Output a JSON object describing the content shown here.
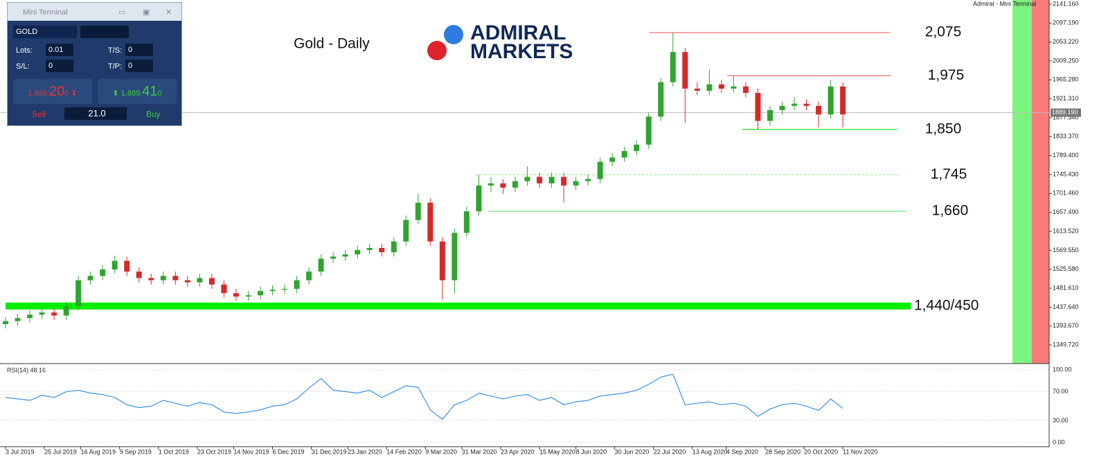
{
  "chart_data": {
    "type": "candlestick",
    "title": "Gold - Daily",
    "x": [
      0,
      5,
      10,
      15,
      20,
      25,
      30,
      35,
      40,
      45,
      50,
      55,
      60,
      65,
      70,
      75,
      80,
      85,
      90,
      95,
      100,
      105,
      110,
      115,
      120,
      125,
      130,
      135,
      140,
      145,
      150,
      155,
      160,
      165,
      170,
      175,
      180,
      185,
      190,
      195,
      200,
      205,
      210,
      215,
      220,
      225,
      230,
      235,
      240,
      245,
      250,
      255,
      260,
      265,
      270,
      275,
      280,
      285,
      290,
      295,
      300,
      305,
      310,
      315,
      320,
      325,
      330,
      335,
      340,
      345
    ],
    "open": [
      1398,
      1405,
      1412,
      1420,
      1425,
      1418,
      1440,
      1500,
      1510,
      1525,
      1545,
      1520,
      1505,
      1500,
      1510,
      1500,
      1495,
      1505,
      1490,
      1470,
      1462,
      1465,
      1475,
      1478,
      1480,
      1500,
      1520,
      1550,
      1555,
      1560,
      1570,
      1575,
      1565,
      1590,
      1640,
      1680,
      1590,
      1500,
      1610,
      1660,
      1720,
      1725,
      1715,
      1730,
      1740,
      1725,
      1740,
      1720,
      1730,
      1735,
      1775,
      1785,
      1800,
      1815,
      1880,
      1960,
      2030,
      1945,
      1940,
      1955,
      1945,
      1950,
      1935,
      1870,
      1895,
      1905,
      1910,
      1905,
      1885,
      1950
    ],
    "high": [
      1415,
      1422,
      1430,
      1435,
      1435,
      1450,
      1510,
      1520,
      1535,
      1557,
      1555,
      1530,
      1515,
      1520,
      1520,
      1510,
      1515,
      1515,
      1500,
      1480,
      1475,
      1485,
      1488,
      1490,
      1510,
      1530,
      1560,
      1565,
      1570,
      1580,
      1585,
      1585,
      1600,
      1650,
      1700,
      1690,
      1600,
      1620,
      1670,
      1745,
      1740,
      1735,
      1740,
      1765,
      1750,
      1750,
      1750,
      1740,
      1745,
      1785,
      1795,
      1810,
      1825,
      1890,
      1970,
      2075,
      2040,
      1960,
      1990,
      1965,
      1975,
      1960,
      1945,
      1905,
      1915,
      1925,
      1920,
      1915,
      1965,
      1960
    ],
    "low": [
      1388,
      1395,
      1402,
      1410,
      1408,
      1408,
      1430,
      1490,
      1500,
      1515,
      1510,
      1495,
      1490,
      1490,
      1490,
      1485,
      1485,
      1480,
      1460,
      1452,
      1452,
      1455,
      1465,
      1468,
      1470,
      1490,
      1510,
      1540,
      1545,
      1550,
      1560,
      1555,
      1555,
      1580,
      1630,
      1580,
      1455,
      1470,
      1600,
      1650,
      1705,
      1700,
      1705,
      1720,
      1715,
      1715,
      1680,
      1710,
      1720,
      1725,
      1765,
      1775,
      1790,
      1805,
      1870,
      1950,
      1865,
      1930,
      1930,
      1935,
      1935,
      1925,
      1850,
      1860,
      1885,
      1895,
      1895,
      1855,
      1875,
      1855
    ],
    "close": [
      1405,
      1412,
      1420,
      1425,
      1418,
      1440,
      1500,
      1510,
      1525,
      1545,
      1520,
      1505,
      1500,
      1510,
      1500,
      1495,
      1505,
      1490,
      1470,
      1462,
      1465,
      1475,
      1478,
      1480,
      1500,
      1520,
      1550,
      1555,
      1560,
      1570,
      1575,
      1565,
      1590,
      1640,
      1680,
      1590,
      1500,
      1610,
      1660,
      1720,
      1725,
      1715,
      1730,
      1740,
      1725,
      1740,
      1720,
      1730,
      1735,
      1775,
      1785,
      1800,
      1815,
      1880,
      1960,
      2030,
      1945,
      1940,
      1955,
      1945,
      1950,
      1935,
      1870,
      1895,
      1905,
      1910,
      1905,
      1885,
      1950,
      1885
    ],
    "up_color": "#2fa52f",
    "down_color": "#d42a2a",
    "xlim": [
      0,
      430
    ],
    "xticks": [
      {
        "value": 0,
        "label": "3 Jul 2019"
      },
      {
        "value": 16,
        "label": "25 Jul 2019"
      },
      {
        "value": 31,
        "label": "16 Aug 2019"
      },
      {
        "value": 47,
        "label": "9 Sep 2019"
      },
      {
        "value": 63,
        "label": "1 Oct 2019"
      },
      {
        "value": 79,
        "label": "23 Oct 2019"
      },
      {
        "value": 94,
        "label": "14 Nov 2019"
      },
      {
        "value": 110,
        "label": "6 Dec 2019"
      },
      {
        "value": 126,
        "label": "31 Dec 2019"
      },
      {
        "value": 141,
        "label": "23 Jan 2020"
      },
      {
        "value": 157,
        "label": "14 Feb 2020"
      },
      {
        "value": 173,
        "label": "9 Mar 2020"
      },
      {
        "value": 188,
        "label": "31 Mar 2020"
      },
      {
        "value": 204,
        "label": "23 Apr 2020"
      },
      {
        "value": 220,
        "label": "15 May 2020"
      },
      {
        "value": 235,
        "label": "8 Jun 2020"
      },
      {
        "value": 251,
        "label": "30 Jun 2020"
      },
      {
        "value": 267,
        "label": "22 Jul 2020"
      },
      {
        "value": 283,
        "label": "13 Aug 2020"
      },
      {
        "value": 297,
        "label": "4 Sep 2020"
      },
      {
        "value": 313,
        "label": "28 Sep 2020"
      },
      {
        "value": 329,
        "label": "20 Oct 2020"
      },
      {
        "value": 345,
        "label": "11 Nov 2020"
      }
    ],
    "ylim": [
      1306.4,
      2150.8
    ],
    "yticks": [
      {
        "value": 2141.16,
        "label": "2141.160"
      },
      {
        "value": 2097.19,
        "label": "2097.190"
      },
      {
        "value": 2053.22,
        "label": "2053.220"
      },
      {
        "value": 2009.25,
        "label": "2009.250"
      },
      {
        "value": 1965.28,
        "label": "1965.280"
      },
      {
        "value": 1921.31,
        "label": "1921.310"
      },
      {
        "value": 1877.34,
        "label": "1877.340"
      },
      {
        "value": 1833.37,
        "label": "1833.370"
      },
      {
        "value": 1789.4,
        "label": "1789.400"
      },
      {
        "value": 1745.43,
        "label": "1745.430"
      },
      {
        "value": 1701.46,
        "label": "1701.460"
      },
      {
        "value": 1657.49,
        "label": "1657.490"
      },
      {
        "value": 1613.52,
        "label": "1613.520"
      },
      {
        "value": 1569.55,
        "label": "1569.550"
      },
      {
        "value": 1525.58,
        "label": "1525.580"
      },
      {
        "value": 1481.61,
        "label": "1481.610"
      },
      {
        "value": 1437.64,
        "label": "1437.640"
      },
      {
        "value": 1393.67,
        "label": "1393.670"
      },
      {
        "value": 1349.72,
        "label": "1349.720"
      }
    ],
    "current_price": {
      "value": 1889.19,
      "label": "1889.190"
    },
    "levels": [
      {
        "value": 2075,
        "label": "2,075",
        "color": "#ef4b4b"
      },
      {
        "value": 1975,
        "label": "1,975",
        "color": "#ef4b4b"
      },
      {
        "value": 1850,
        "label": "1,850",
        "color": "#44dd44"
      },
      {
        "value": 1745,
        "label": "1,745",
        "color": "#77ee77"
      },
      {
        "value": 1660,
        "label": "1,660",
        "color": "#55dd55"
      },
      {
        "value": 1440,
        "label": "1,440/450",
        "color": "#00ee00"
      }
    ],
    "rsi": {
      "label": "RSI(14) 48.16",
      "color": "#3d8fe0",
      "values": [
        62,
        60,
        58,
        65,
        62,
        70,
        72,
        68,
        66,
        62,
        52,
        48,
        50,
        58,
        54,
        50,
        55,
        52,
        42,
        40,
        42,
        45,
        50,
        52,
        60,
        75,
        88,
        72,
        70,
        68,
        72,
        62,
        70,
        78,
        76,
        45,
        32,
        52,
        58,
        68,
        64,
        60,
        64,
        66,
        58,
        62,
        52,
        56,
        58,
        64,
        66,
        68,
        72,
        80,
        90,
        94,
        52,
        54,
        56,
        52,
        54,
        50,
        36,
        46,
        52,
        54,
        50,
        44,
        60,
        47
      ],
      "ylim": [
        -5.7,
        106.7
      ],
      "yticks": [
        {
          "value": 100,
          "label": "100.00"
        },
        {
          "value": 70,
          "label": "70.00"
        },
        {
          "value": 30,
          "label": "30.00"
        },
        {
          "value": 0,
          "label": "0.00"
        }
      ]
    }
  },
  "window_title": "Admiral - Mini Terminal",
  "logo": [
    "ADMIRAL",
    "MARKETS"
  ],
  "terminal": {
    "title": "Mini Terminal",
    "symbol": "GOLD",
    "lots_label": "Lots:",
    "lots": "0.01",
    "ts_label": "T/S:",
    "ts": "0",
    "sl_label": "S/L:",
    "sl": "0",
    "tp_label": "T/P:",
    "tp": "0",
    "sell_price": [
      "1,889.",
      "20",
      "0"
    ],
    "buy_price": [
      "1,889.",
      "41",
      "0"
    ],
    "sell": "Sell",
    "volume": "21.0",
    "buy": "Buy"
  }
}
